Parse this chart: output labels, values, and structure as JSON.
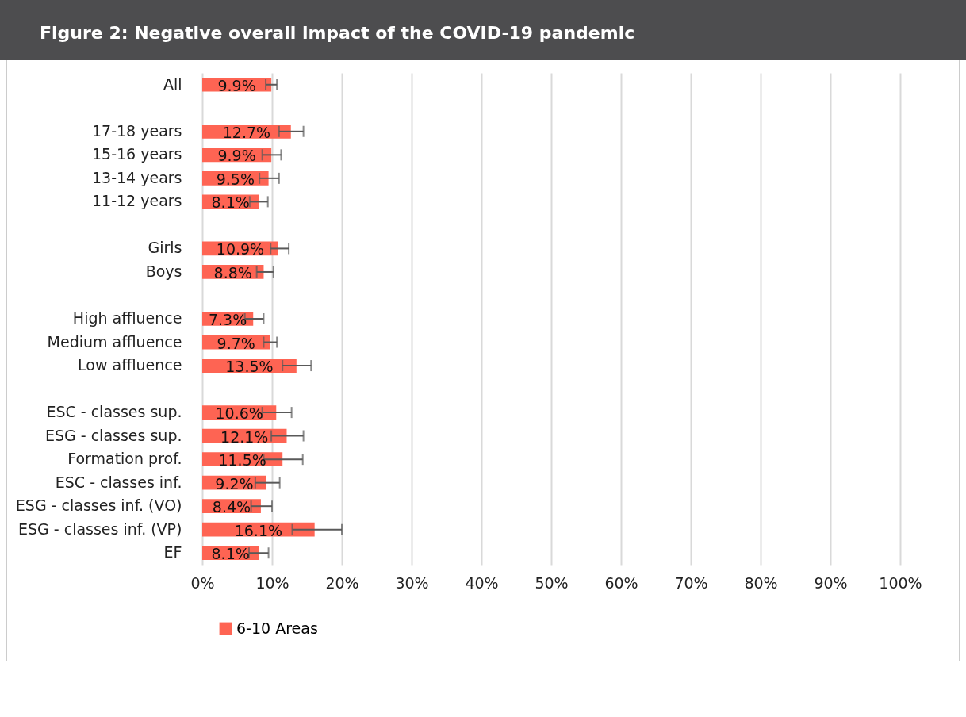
{
  "chart_data": {
    "type": "bar",
    "orientation": "horizontal",
    "title": "Figure 2: Negative overall impact of the COVID-19 pandemic",
    "categories": [
      "All",
      null,
      "17-18 years",
      "15-16 years",
      "13-14 years",
      "11-12 years",
      null,
      "Girls",
      "Boys",
      null,
      "High affluence",
      "Medium affluence",
      "Low affluence",
      null,
      "ESC - classes sup.",
      "ESG - classes sup.",
      "Formation prof.",
      "ESC - classes inf.",
      "ESG - classes inf. (VO)",
      "ESG - classes inf. (VP)",
      "EF"
    ],
    "series": [
      {
        "name": "6-10 Areas",
        "color": "#fe6453",
        "values": [
          9.9,
          null,
          12.7,
          9.9,
          9.5,
          8.1,
          null,
          10.9,
          8.8,
          null,
          7.3,
          9.7,
          13.5,
          null,
          10.6,
          12.1,
          11.5,
          9.2,
          8.4,
          16.1,
          8.1
        ],
        "errors": [
          [
            9.1,
            10.7
          ],
          null,
          [
            11.0,
            14.5
          ],
          [
            8.6,
            11.3
          ],
          [
            8.2,
            11.0
          ],
          [
            6.8,
            9.4
          ],
          null,
          [
            9.8,
            12.4
          ],
          [
            7.8,
            10.2
          ],
          null,
          [
            6.1,
            8.8
          ],
          [
            8.8,
            10.7
          ],
          [
            11.5,
            15.6
          ],
          null,
          [
            8.6,
            12.8
          ],
          [
            9.9,
            14.5
          ],
          [
            8.8,
            14.4
          ],
          [
            7.6,
            11.1
          ],
          [
            7.0,
            10.0
          ],
          [
            12.9,
            20.0
          ],
          [
            6.7,
            9.5
          ]
        ],
        "value_labels": [
          "9.9%",
          null,
          "12.7%",
          "9.9%",
          "9.5%",
          "8.1%",
          null,
          "10.9%",
          "8.8%",
          null,
          "7.3%",
          "9.7%",
          "13.5%",
          null,
          "10.6%",
          "12.1%",
          "11.5%",
          "9.2%",
          "8.4%",
          "16.1%",
          "8.1%"
        ]
      }
    ],
    "xlim": [
      0,
      100
    ],
    "xticks": [
      {
        "value": 0,
        "label": "0%"
      },
      {
        "value": 10,
        "label": "10%"
      },
      {
        "value": 20,
        "label": "20%"
      },
      {
        "value": 30,
        "label": "30%"
      },
      {
        "value": 40,
        "label": "40%"
      },
      {
        "value": 50,
        "label": "50%"
      },
      {
        "value": 60,
        "label": "60%"
      },
      {
        "value": 70,
        "label": "70%"
      },
      {
        "value": 80,
        "label": "80%"
      },
      {
        "value": 90,
        "label": "90%"
      },
      {
        "value": 100,
        "label": "100%"
      }
    ],
    "grid": "x",
    "legend": "bottom"
  }
}
